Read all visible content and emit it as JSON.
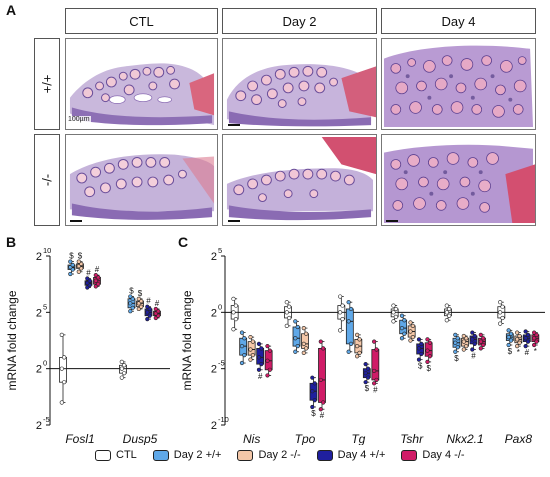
{
  "panels": {
    "a": "A",
    "b": "B",
    "c": "C"
  },
  "histology": {
    "columns": [
      "CTL",
      "Day 2",
      "Day 4"
    ],
    "rows": [
      "+/+",
      "-/-"
    ],
    "scale_label": "100µm"
  },
  "chart_b": {
    "ylabel": "mRNA fold change",
    "y_ticks": [
      {
        "base": "2",
        "exp": "10"
      },
      {
        "base": "2",
        "exp": "5"
      },
      {
        "base": "2",
        "exp": "0"
      },
      {
        "base": "2",
        "exp": "-5"
      }
    ],
    "categories": [
      "Fosl1",
      "Dusp5"
    ]
  },
  "chart_c": {
    "ylabel": "mRNA fold change",
    "y_ticks": [
      {
        "base": "2",
        "exp": "5"
      },
      {
        "base": "2",
        "exp": "0"
      },
      {
        "base": "2",
        "exp": "-5"
      },
      {
        "base": "2",
        "exp": "-10"
      }
    ],
    "categories": [
      "Nis",
      "Tpo",
      "Tg",
      "Tshr",
      "Nkx2.1",
      "Pax8"
    ]
  },
  "legend": [
    {
      "label": "CTL",
      "color": "#ffffff"
    },
    {
      "label": "Day 2 +/+",
      "color": "#5fa8e8"
    },
    {
      "label": "Day 2 -/-",
      "color": "#f4c7a8"
    },
    {
      "label": "Day 4 +/+",
      "color": "#1f1f9e"
    },
    {
      "label": "Day 4 -/-",
      "color": "#d01c67"
    }
  ],
  "chart_data": [
    {
      "type": "box",
      "ylabel": "mRNA fold change",
      "yscale": "log2",
      "ylim": [
        -5,
        10
      ],
      "categories": [
        "Fosl1",
        "Dusp5"
      ],
      "series": [
        {
          "name": "CTL",
          "color": "#ffffff",
          "median": [
            0,
            0
          ],
          "q1": [
            -1.2,
            -0.4
          ],
          "q3": [
            1.0,
            0.3
          ],
          "min": [
            -3.0,
            -0.8
          ],
          "max": [
            3.0,
            0.6
          ]
        },
        {
          "name": "Day 2 +/+",
          "color": "#5fa8e8",
          "median": [
            9.0,
            5.8
          ],
          "q1": [
            8.8,
            5.4
          ],
          "q3": [
            9.2,
            6.2
          ],
          "min": [
            8.4,
            5.1
          ],
          "max": [
            9.5,
            6.4
          ],
          "mark": [
            "$",
            "$"
          ]
        },
        {
          "name": "Day 2 -/-",
          "color": "#f4c7a8",
          "median": [
            9.1,
            5.8
          ],
          "q1": [
            8.9,
            5.5
          ],
          "q3": [
            9.3,
            6.0
          ],
          "min": [
            8.6,
            5.3
          ],
          "max": [
            9.5,
            6.2
          ],
          "mark": [
            "$",
            "$"
          ]
        },
        {
          "name": "Day 4 +/+",
          "color": "#1f1f9e",
          "median": [
            7.6,
            5.0
          ],
          "q1": [
            7.4,
            4.7
          ],
          "q3": [
            7.8,
            5.3
          ],
          "min": [
            7.2,
            4.4
          ],
          "max": [
            8.0,
            5.5
          ],
          "mark": [
            "#",
            "#"
          ]
        },
        {
          "name": "Day 4 -/-",
          "color": "#d01c67",
          "median": [
            7.8,
            4.9
          ],
          "q1": [
            7.5,
            4.7
          ],
          "q3": [
            8.1,
            5.1
          ],
          "min": [
            7.3,
            4.5
          ],
          "max": [
            8.3,
            5.3
          ],
          "mark": [
            "#",
            "#"
          ]
        }
      ]
    },
    {
      "type": "box",
      "ylabel": "mRNA fold change",
      "yscale": "log2",
      "ylim": [
        -10,
        5
      ],
      "categories": [
        "Nis",
        "Tpo",
        "Tg",
        "Tshr",
        "Nkx2.1",
        "Pax8"
      ],
      "series": [
        {
          "name": "CTL",
          "color": "#ffffff",
          "median": [
            0,
            0,
            0,
            0,
            0,
            0
          ],
          "q1": [
            -0.6,
            -0.5,
            -0.6,
            -0.4,
            -0.3,
            -0.5
          ],
          "q3": [
            0.6,
            0.5,
            0.6,
            0.3,
            0.3,
            0.5
          ],
          "min": [
            -1.5,
            -1.2,
            -1.6,
            -0.8,
            -0.7,
            -1.0
          ],
          "max": [
            1.2,
            0.9,
            1.4,
            0.6,
            0.6,
            0.9
          ]
        },
        {
          "name": "Day 2 +/+",
          "color": "#5fa8e8",
          "median": [
            -3.0,
            -2.3,
            -0.8,
            -1.4,
            -2.7,
            -2.2
          ],
          "q1": [
            -3.8,
            -3.0,
            -2.8,
            -1.9,
            -3.1,
            -2.5
          ],
          "q3": [
            -2.3,
            -1.3,
            0.3,
            -0.7,
            -2.3,
            -1.9
          ],
          "min": [
            -4.5,
            -3.5,
            -3.5,
            -2.3,
            -3.5,
            -2.9
          ],
          "max": [
            -1.8,
            -0.8,
            0.9,
            -0.3,
            -2.0,
            -1.6
          ],
          "mark": [
            "",
            "",
            "",
            "",
            "$",
            "$"
          ]
        },
        {
          "name": "Day 2 -/-",
          "color": "#f4c7a8",
          "median": [
            -3.3,
            -2.8,
            -3.0,
            -1.7,
            -2.6,
            -2.4
          ],
          "q1": [
            -3.8,
            -3.2,
            -3.6,
            -2.2,
            -3.0,
            -2.7
          ],
          "q3": [
            -2.6,
            -1.9,
            -2.4,
            -1.2,
            -2.3,
            -2.1
          ],
          "min": [
            -4.2,
            -3.6,
            -3.9,
            -2.5,
            -3.3,
            -3.0
          ],
          "max": [
            -2.2,
            -1.4,
            -2.0,
            -0.9,
            -2.1,
            -1.8
          ],
          "mark": [
            "",
            "",
            "",
            "",
            "",
            "*"
          ]
        },
        {
          "name": "Day 4 +/+",
          "color": "#1f1f9e",
          "median": [
            -4.0,
            -7.0,
            -5.4,
            -3.2,
            -2.4,
            -2.3
          ],
          "q1": [
            -4.6,
            -7.8,
            -5.8,
            -3.7,
            -2.8,
            -2.6
          ],
          "q3": [
            -3.2,
            -6.3,
            -5.0,
            -2.8,
            -2.1,
            -2.0
          ],
          "min": [
            -5.1,
            -8.4,
            -6.2,
            -4.2,
            -3.3,
            -3.0
          ],
          "max": [
            -2.8,
            -5.8,
            -4.6,
            -2.4,
            -1.8,
            -1.7
          ],
          "mark": [
            "#",
            "$",
            "$",
            "$",
            "#",
            "#"
          ]
        },
        {
          "name": "Day 4 -/-",
          "color": "#d01c67",
          "median": [
            -4.3,
            -6.0,
            -5.2,
            -3.4,
            -2.6,
            -2.3
          ],
          "q1": [
            -5.1,
            -8.0,
            -6.0,
            -3.9,
            -2.9,
            -2.6
          ],
          "q3": [
            -3.4,
            -3.2,
            -3.3,
            -2.7,
            -2.3,
            -2.0
          ],
          "min": [
            -5.6,
            -8.6,
            -6.3,
            -4.4,
            -3.2,
            -2.9
          ],
          "max": [
            -3.0,
            -2.6,
            -2.6,
            -2.4,
            -2.0,
            -1.8
          ],
          "mark": [
            "",
            "#",
            "#",
            "$",
            "",
            "*"
          ]
        }
      ]
    }
  ]
}
